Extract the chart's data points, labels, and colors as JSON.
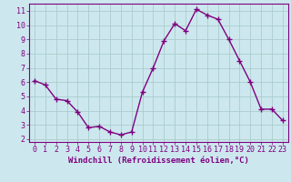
{
  "x": [
    0,
    1,
    2,
    3,
    4,
    5,
    6,
    7,
    8,
    9,
    10,
    11,
    12,
    13,
    14,
    15,
    16,
    17,
    18,
    19,
    20,
    21,
    22,
    23
  ],
  "y": [
    6.1,
    5.8,
    4.8,
    4.7,
    3.9,
    2.8,
    2.9,
    2.5,
    2.3,
    2.5,
    5.3,
    7.0,
    8.9,
    10.1,
    9.6,
    11.1,
    10.7,
    10.4,
    9.0,
    7.5,
    6.0,
    4.1,
    4.1,
    3.3
  ],
  "line_color": "#800080",
  "marker": "+",
  "marker_size": 4,
  "line_width": 1.0,
  "bg_color": "#cce8ee",
  "plot_bg_color": "#cce8ee",
  "grid_color": "#aacccc",
  "xlabel": "Windchill (Refroidissement éolien,°C)",
  "xlabel_color": "#800080",
  "tick_color": "#800080",
  "spine_color": "#800080",
  "xlim": [
    -0.5,
    23.5
  ],
  "ylim": [
    1.8,
    11.5
  ],
  "yticks": [
    2,
    3,
    4,
    5,
    6,
    7,
    8,
    9,
    10,
    11
  ],
  "xticks": [
    0,
    1,
    2,
    3,
    4,
    5,
    6,
    7,
    8,
    9,
    10,
    11,
    12,
    13,
    14,
    15,
    16,
    17,
    18,
    19,
    20,
    21,
    22,
    23
  ],
  "xlabel_fontsize": 6.5,
  "tick_fontsize": 6.0
}
